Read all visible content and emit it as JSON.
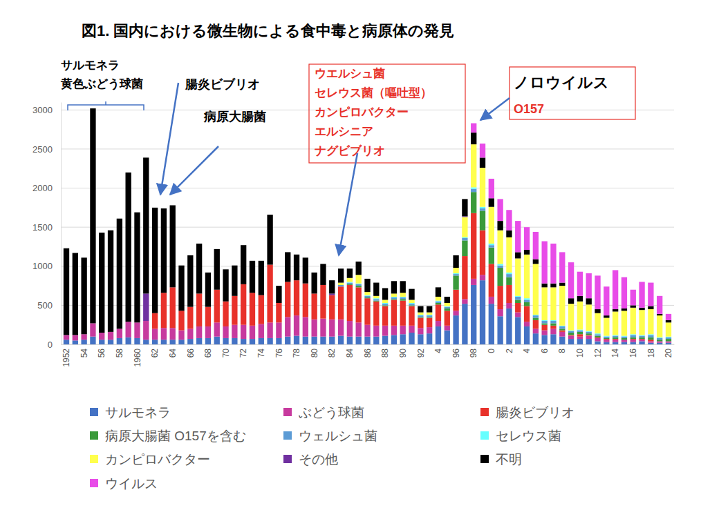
{
  "chart_data": {
    "type": "bar",
    "title": "図1. 国内における微生物による食中毒と病原体の発見",
    "stacked": true,
    "grid": true,
    "legend": "bottom",
    "ylim": [
      0,
      3100
    ],
    "yticks": [
      0,
      500,
      1000,
      1500,
      2000,
      2500,
      3000
    ],
    "annotations": [
      [
        "サルモネラ",
        "黄色ぶどう球菌"
      ],
      [
        "腸炎ビブリオ"
      ],
      [
        "病原大腸菌"
      ],
      [
        "ウエルシュ菌",
        "セレウス菌（嘔吐型）",
        "カンピロバクター",
        "エルシニア",
        "ナグビブリオ"
      ],
      [
        "ノロウイルス",
        "O157"
      ]
    ],
    "categories": [
      "1952",
      null,
      "54",
      null,
      "56",
      null,
      "58",
      null,
      "1960",
      null,
      "62",
      null,
      "64",
      null,
      "66",
      null,
      "68",
      null,
      "70",
      null,
      "72",
      null,
      "74",
      null,
      "76",
      null,
      "78",
      null,
      "80",
      null,
      "82",
      null,
      "84",
      null,
      "86",
      null,
      "88",
      null,
      "90",
      null,
      "92",
      null,
      "4",
      null,
      "96",
      null,
      "98",
      null,
      "0",
      null,
      "2",
      null,
      "4",
      null,
      "6",
      null,
      "8",
      null,
      "10",
      null,
      "12",
      null,
      "14",
      null,
      "16",
      null,
      "18",
      null,
      "20"
    ],
    "series": [
      {
        "name": "サルモネラ",
        "color": "#4472c4",
        "values": [
          60,
          50,
          60,
          100,
          60,
          60,
          80,
          90,
          80,
          60,
          60,
          60,
          60,
          60,
          70,
          80,
          80,
          100,
          80,
          80,
          70,
          70,
          80,
          80,
          80,
          100,
          110,
          100,
          100,
          100,
          100,
          110,
          100,
          100,
          100,
          100,
          110,
          120,
          130,
          150,
          130,
          140,
          230,
          180,
          370,
          520,
          760,
          820,
          520,
          360,
          460,
          350,
          230,
          140,
          120,
          130,
          100,
          70,
          70,
          70,
          40,
          30,
          30,
          30,
          30,
          40,
          20,
          20,
          20
        ]
      },
      {
        "name": "ぶどう球菌",
        "color": "#c73a9e",
        "values": [
          60,
          70,
          70,
          170,
          90,
          100,
          120,
          200,
          200,
          240,
          140,
          150,
          150,
          120,
          130,
          150,
          150,
          180,
          150,
          170,
          180,
          170,
          180,
          200,
          200,
          250,
          260,
          250,
          220,
          230,
          220,
          210,
          200,
          180,
          150,
          140,
          130,
          120,
          110,
          90,
          80,
          80,
          70,
          60,
          60,
          60,
          80,
          70,
          90,
          90,
          70,
          60,
          60,
          60,
          60,
          70,
          60,
          40,
          30,
          40,
          40,
          30,
          30,
          30,
          30,
          20,
          20,
          20,
          20
        ]
      },
      {
        "name": "腸炎ビブリオ",
        "color": "#e8312a",
        "values": [
          0,
          0,
          0,
          0,
          0,
          0,
          0,
          0,
          0,
          0,
          200,
          450,
          520,
          250,
          280,
          420,
          250,
          420,
          320,
          370,
          520,
          420,
          370,
          740,
          250,
          450,
          450,
          430,
          330,
          430,
          310,
          420,
          460,
          450,
          340,
          310,
          250,
          330,
          320,
          250,
          130,
          120,
          210,
          190,
          270,
          550,
          840,
          570,
          420,
          300,
          230,
          120,
          200,
          110,
          70,
          40,
          20,
          10,
          30,
          10,
          10,
          10,
          10,
          0,
          10,
          10,
          20,
          0,
          0
        ]
      },
      {
        "name": "病原大腸菌 O157を含む",
        "color": "#3a9a3a",
        "values": [
          0,
          0,
          0,
          0,
          0,
          0,
          0,
          0,
          0,
          0,
          0,
          0,
          0,
          0,
          0,
          0,
          0,
          0,
          0,
          0,
          0,
          0,
          0,
          0,
          0,
          0,
          0,
          0,
          0,
          0,
          0,
          0,
          10,
          20,
          10,
          10,
          10,
          10,
          20,
          10,
          10,
          10,
          20,
          30,
          180,
          200,
          270,
          250,
          210,
          230,
          100,
          40,
          50,
          30,
          20,
          30,
          20,
          30,
          30,
          20,
          20,
          10,
          20,
          20,
          20,
          20,
          30,
          20,
          30
        ]
      },
      {
        "name": "ウェルシュ菌",
        "color": "#5b9bd5",
        "values": [
          0,
          0,
          0,
          0,
          0,
          0,
          0,
          0,
          0,
          0,
          0,
          0,
          0,
          0,
          0,
          0,
          0,
          0,
          0,
          0,
          0,
          0,
          0,
          0,
          0,
          0,
          0,
          0,
          0,
          0,
          0,
          20,
          20,
          20,
          20,
          20,
          20,
          20,
          20,
          20,
          20,
          20,
          20,
          20,
          20,
          30,
          40,
          30,
          30,
          30,
          40,
          40,
          30,
          30,
          30,
          30,
          30,
          20,
          20,
          20,
          20,
          20,
          20,
          20,
          30,
          20,
          30,
          20,
          20
        ]
      },
      {
        "name": "セレウス菌",
        "color": "#66ffff",
        "values": [
          0,
          0,
          0,
          0,
          0,
          0,
          0,
          0,
          0,
          0,
          0,
          0,
          0,
          0,
          0,
          0,
          0,
          0,
          0,
          0,
          0,
          0,
          0,
          0,
          0,
          0,
          0,
          0,
          0,
          0,
          0,
          0,
          10,
          10,
          10,
          10,
          10,
          10,
          10,
          10,
          10,
          10,
          10,
          10,
          10,
          10,
          20,
          20,
          20,
          20,
          20,
          10,
          20,
          10,
          10,
          10,
          10,
          10,
          10,
          10,
          10,
          10,
          10,
          10,
          10,
          10,
          10,
          10,
          10
        ]
      },
      {
        "name": "カンピロバクター",
        "color": "#ffff4d",
        "values": [
          0,
          0,
          0,
          0,
          0,
          0,
          0,
          0,
          0,
          0,
          0,
          0,
          0,
          0,
          0,
          0,
          0,
          0,
          0,
          0,
          0,
          0,
          0,
          0,
          0,
          0,
          0,
          0,
          0,
          0,
          0,
          30,
          50,
          110,
          40,
          30,
          40,
          40,
          50,
          40,
          30,
          30,
          50,
          40,
          70,
          260,
          550,
          500,
          470,
          430,
          450,
          480,
          560,
          650,
          420,
          420,
          510,
          340,
          360,
          340,
          260,
          230,
          300,
          320,
          340,
          320,
          320,
          280,
          180
        ]
      },
      {
        "name": "その他",
        "color": "#7030a0",
        "values": [
          0,
          0,
          0,
          0,
          0,
          0,
          0,
          0,
          0,
          350,
          0,
          0,
          0,
          0,
          0,
          0,
          0,
          0,
          0,
          0,
          0,
          0,
          0,
          0,
          0,
          0,
          0,
          0,
          0,
          0,
          20,
          0,
          0,
          0,
          0,
          0,
          0,
          0,
          0,
          0,
          0,
          0,
          0,
          0,
          0,
          10,
          0,
          0,
          0,
          0,
          0,
          0,
          0,
          0,
          0,
          0,
          0,
          0,
          0,
          0,
          0,
          0,
          0,
          0,
          0,
          0,
          0,
          0,
          0
        ]
      },
      {
        "name": "不明",
        "color": "#000000",
        "values": [
          1110,
          1050,
          980,
          2750,
          1280,
          1300,
          1410,
          1910,
          1410,
          1740,
          1350,
          1080,
          1050,
          580,
          660,
          640,
          440,
          520,
          410,
          390,
          500,
          410,
          440,
          640,
          220,
          380,
          330,
          330,
          270,
          270,
          170,
          180,
          120,
          170,
          170,
          170,
          150,
          160,
          150,
          140,
          80,
          80,
          120,
          80,
          160,
          220,
          150,
          130,
          110,
          120,
          90,
          80,
          60,
          60,
          50,
          50,
          40,
          70,
          70,
          80,
          50,
          30,
          30,
          30,
          30,
          30,
          40,
          20,
          30
        ]
      },
      {
        "name": "ウイルス",
        "color": "#e84ce8",
        "values": [
          0,
          0,
          0,
          0,
          0,
          0,
          0,
          0,
          0,
          0,
          0,
          0,
          0,
          0,
          0,
          0,
          0,
          0,
          0,
          0,
          0,
          0,
          0,
          0,
          0,
          0,
          0,
          0,
          0,
          0,
          0,
          0,
          0,
          0,
          0,
          0,
          0,
          0,
          0,
          0,
          0,
          0,
          0,
          0,
          0,
          0,
          120,
          180,
          250,
          280,
          260,
          400,
          290,
          350,
          540,
          510,
          390,
          460,
          310,
          320,
          430,
          370,
          500,
          400,
          200,
          330,
          300,
          230,
          80
        ]
      }
    ]
  }
}
